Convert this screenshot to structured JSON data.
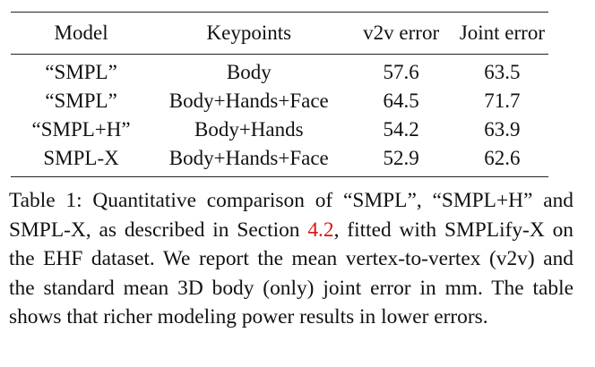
{
  "table": {
    "headers": [
      "Model",
      "Keypoints",
      "v2v error",
      "Joint error"
    ],
    "rows": [
      [
        "“SMPL”",
        "Body",
        "57.6",
        "63.5"
      ],
      [
        "“SMPL”",
        "Body+Hands+Face",
        "64.5",
        "71.7"
      ],
      [
        "“SMPL+H”",
        "Body+Hands",
        "54.2",
        "63.9"
      ],
      [
        "SMPL-X",
        "Body+Hands+Face",
        "52.9",
        "62.6"
      ]
    ]
  },
  "caption": {
    "before": "Table 1: Quantitative comparison of “SMPL”, “SMPL+H” and SMPL-X, as described in Section ",
    "ref": "4.2",
    "after": ", fitted with SMPLify-X on the EHF dataset. We report the mean vertex-to-vertex (v2v) and the standard mean 3D body (only) joint error in mm. The table shows that richer modeling power results in lower errors."
  }
}
